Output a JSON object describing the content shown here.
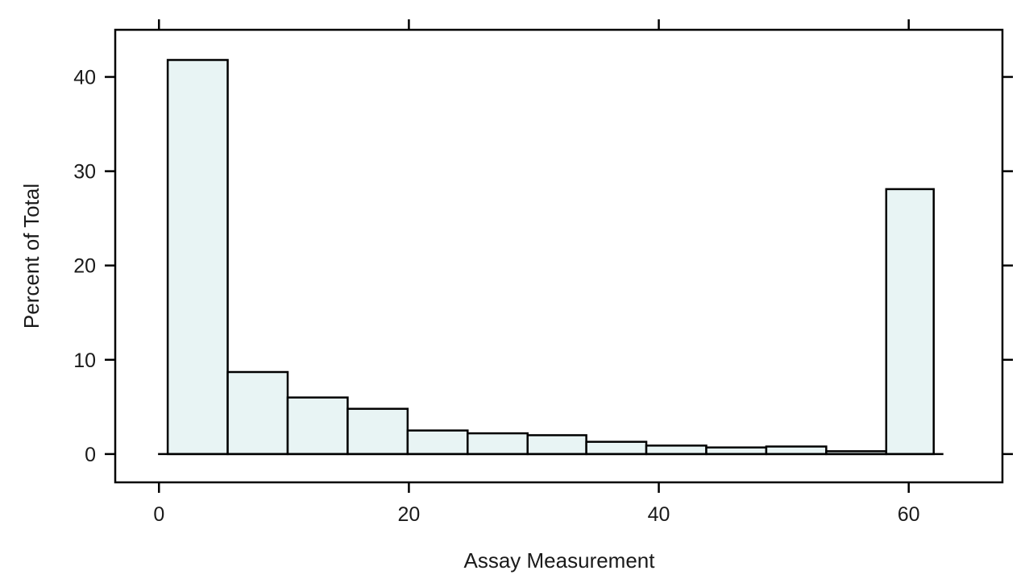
{
  "chart_data": {
    "type": "bar",
    "title": "",
    "xlabel": "Assay Measurement",
    "ylabel": "Percent of Total",
    "xlim": [
      -3.5,
      67.5
    ],
    "ylim": [
      -3,
      45
    ],
    "grid": false,
    "x_ticks": [
      0,
      20,
      40,
      60
    ],
    "y_ticks": [
      0,
      10,
      20,
      30,
      40
    ],
    "bins": [
      {
        "start": 0.7,
        "end": 5.5,
        "value": 41.8
      },
      {
        "start": 5.5,
        "end": 10.3,
        "value": 8.7
      },
      {
        "start": 10.3,
        "end": 15.1,
        "value": 6.0
      },
      {
        "start": 15.1,
        "end": 19.9,
        "value": 4.8
      },
      {
        "start": 19.9,
        "end": 24.7,
        "value": 2.5
      },
      {
        "start": 24.7,
        "end": 29.5,
        "value": 2.2
      },
      {
        "start": 29.5,
        "end": 34.2,
        "value": 2.0
      },
      {
        "start": 34.2,
        "end": 39.0,
        "value": 1.3
      },
      {
        "start": 39.0,
        "end": 43.8,
        "value": 0.9
      },
      {
        "start": 43.8,
        "end": 48.6,
        "value": 0.7
      },
      {
        "start": 48.6,
        "end": 53.4,
        "value": 0.8
      },
      {
        "start": 53.4,
        "end": 58.2,
        "value": 0.3
      },
      {
        "start": 58.2,
        "end": 62.0,
        "value": 28.1
      }
    ],
    "colors": {
      "bar_fill": "#e8f4f4",
      "bar_stroke": "#000000",
      "axis": "#000000"
    }
  }
}
